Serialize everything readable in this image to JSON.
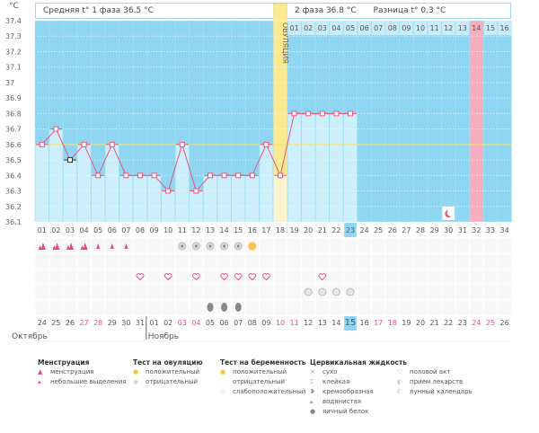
{
  "header": {
    "phase1": "Средняя t° 1 фаза 36.5 °C",
    "phase2": "2 фаза 36.8 °C",
    "diff": "Разница t° 0.3 °C",
    "unit": "°C",
    "ovulation_label": "ОВУЛЯЦИЯ"
  },
  "colors": {
    "bg": "#8fd6f2",
    "bar": "#cdeefb",
    "line": "#e8557a",
    "coverline": "#f5e26b",
    "ovulation": "#fbe98f",
    "highlight": "#f9aebf",
    "today": "#8fd6f2"
  },
  "chart_data": {
    "type": "line",
    "ylabel": "°C",
    "ylim": [
      36.1,
      37.4
    ],
    "yticks": [
      "37.4",
      "37.3",
      "37.2",
      "37.1",
      "37",
      "36.9",
      "36.8",
      "36.7",
      "36.6",
      "36.5",
      "36.4",
      "36.3",
      "36.2",
      "36.1"
    ],
    "cycle_days": [
      "01",
      "02",
      "03",
      "04",
      "05",
      "06",
      "07",
      "08",
      "09",
      "10",
      "11",
      "12",
      "13",
      "14",
      "15",
      "16",
      "17",
      "18",
      "19",
      "20",
      "21",
      "22",
      "23",
      "24",
      "25",
      "26",
      "27",
      "28",
      "29",
      "30",
      "31",
      "32",
      "33",
      "34"
    ],
    "temperatures": [
      36.6,
      36.7,
      36.5,
      36.6,
      36.4,
      36.6,
      36.4,
      36.4,
      36.4,
      36.3,
      36.6,
      36.3,
      36.4,
      36.4,
      36.4,
      36.4,
      36.6,
      36.4,
      36.8,
      36.8,
      36.8,
      36.8,
      36.8
    ],
    "excluded_day": 3,
    "coverline": 36.6,
    "ovulation_day": 18,
    "highlighted_day": 32,
    "current_day": 23,
    "phase2_days": [
      "01",
      "02",
      "03",
      "04",
      "05",
      "06",
      "07",
      "08",
      "09",
      "10",
      "11",
      "12",
      "13",
      "14",
      "15",
      "16"
    ],
    "dates": [
      "24",
      "25",
      "26",
      "27",
      "28",
      "29",
      "30",
      "31",
      "01",
      "02",
      "03",
      "04",
      "05",
      "06",
      "07",
      "08",
      "09",
      "10",
      "11",
      "12",
      "13",
      "14",
      "15",
      "16",
      "17",
      "18",
      "19",
      "20",
      "21",
      "22",
      "23",
      "24",
      "25",
      "26"
    ],
    "weekend_date_indices": [
      3,
      4,
      10,
      11,
      17,
      18,
      24,
      25,
      31,
      32
    ],
    "months": [
      "Октябрь",
      "Ноябрь"
    ],
    "moon_day": 30,
    "markers": {
      "menstruation_heavy": [
        1,
        2,
        3,
        4
      ],
      "menstruation_light": [
        5,
        6,
        7
      ],
      "ovulation_test_negative": [
        11,
        12,
        13,
        14,
        15
      ],
      "ovulation_test_positive": [
        16
      ],
      "intercourse": [
        8,
        10,
        12,
        14,
        15,
        16,
        17,
        21
      ],
      "medication": [
        20,
        21,
        22,
        23
      ],
      "egg_white": [
        13,
        14,
        15
      ]
    }
  },
  "legend": {
    "menstruation": {
      "title": "Менструация",
      "items": [
        "менструация",
        "небольшие выделения"
      ]
    },
    "ovulation_test": {
      "title": "Тест на овуляцию",
      "items": [
        "положительный",
        "отрицательный"
      ]
    },
    "pregnancy_test": {
      "title": "Тест на беременность",
      "items": [
        "положительный",
        "отрицательный",
        "слабоположительный"
      ]
    },
    "cervical": {
      "title": "Цервикальная жидкость",
      "items": [
        "сухо",
        "клейкая",
        "кремообразная",
        "водянистая",
        "яичный белок"
      ]
    },
    "other": {
      "items": [
        "половой акт",
        "прием лекарств",
        "лунный календарь"
      ]
    }
  }
}
